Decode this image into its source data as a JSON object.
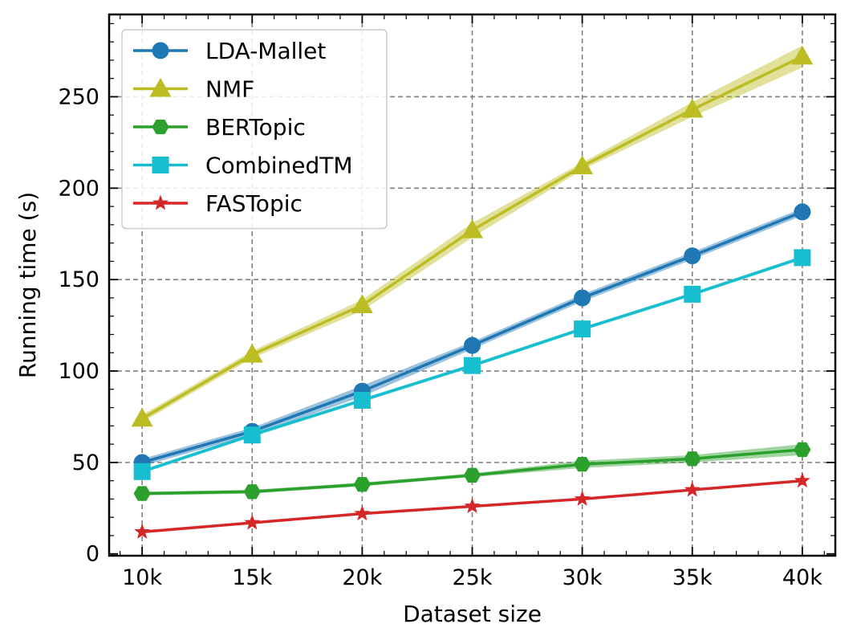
{
  "chart_data": {
    "type": "line",
    "title": "",
    "xlabel": "Dataset size",
    "ylabel": "Running time (s)",
    "x": [
      10,
      15,
      20,
      25,
      30,
      35,
      40
    ],
    "x_tick_labels": [
      "10k",
      "15k",
      "20k",
      "25k",
      "30k",
      "35k",
      "40k"
    ],
    "xlim": [
      8.5,
      41.5
    ],
    "ylim": [
      -1,
      295
    ],
    "y_ticks": [
      0,
      50,
      100,
      150,
      200,
      250
    ],
    "y_tick_labels": [
      "0",
      "50",
      "100",
      "150",
      "200",
      "250"
    ],
    "grid": true,
    "legend_position": "top-left",
    "series": [
      {
        "name": "LDA-Mallet",
        "color": "#1f77b4",
        "marker": "circle",
        "values": [
          50,
          67,
          89,
          114,
          140,
          163,
          187
        ],
        "band": [
          2,
          2,
          3,
          2,
          2,
          2,
          2
        ]
      },
      {
        "name": "NMF",
        "color": "#bcbd22",
        "marker": "triangle",
        "values": [
          74,
          109,
          136,
          177,
          212,
          243,
          272
        ],
        "band": [
          2,
          2,
          3,
          4,
          2,
          4,
          6
        ]
      },
      {
        "name": "BERTopic",
        "color": "#2ca02c",
        "marker": "hexagon",
        "values": [
          33,
          34,
          38,
          43,
          49,
          52,
          57
        ],
        "band": [
          1,
          1,
          1,
          1,
          2,
          2,
          3
        ]
      },
      {
        "name": "CombinedTM",
        "color": "#17becf",
        "marker": "square",
        "values": [
          45,
          65,
          84,
          103,
          123,
          142,
          162
        ],
        "band": [
          1,
          1,
          1,
          1,
          1,
          1,
          1
        ]
      },
      {
        "name": "FASTopic",
        "color": "#d62728",
        "marker": "star",
        "values": [
          12,
          17,
          22,
          26,
          30,
          35,
          40
        ],
        "band": [
          0.5,
          0.5,
          0.5,
          0.5,
          0.5,
          0.5,
          0.5
        ]
      }
    ]
  }
}
